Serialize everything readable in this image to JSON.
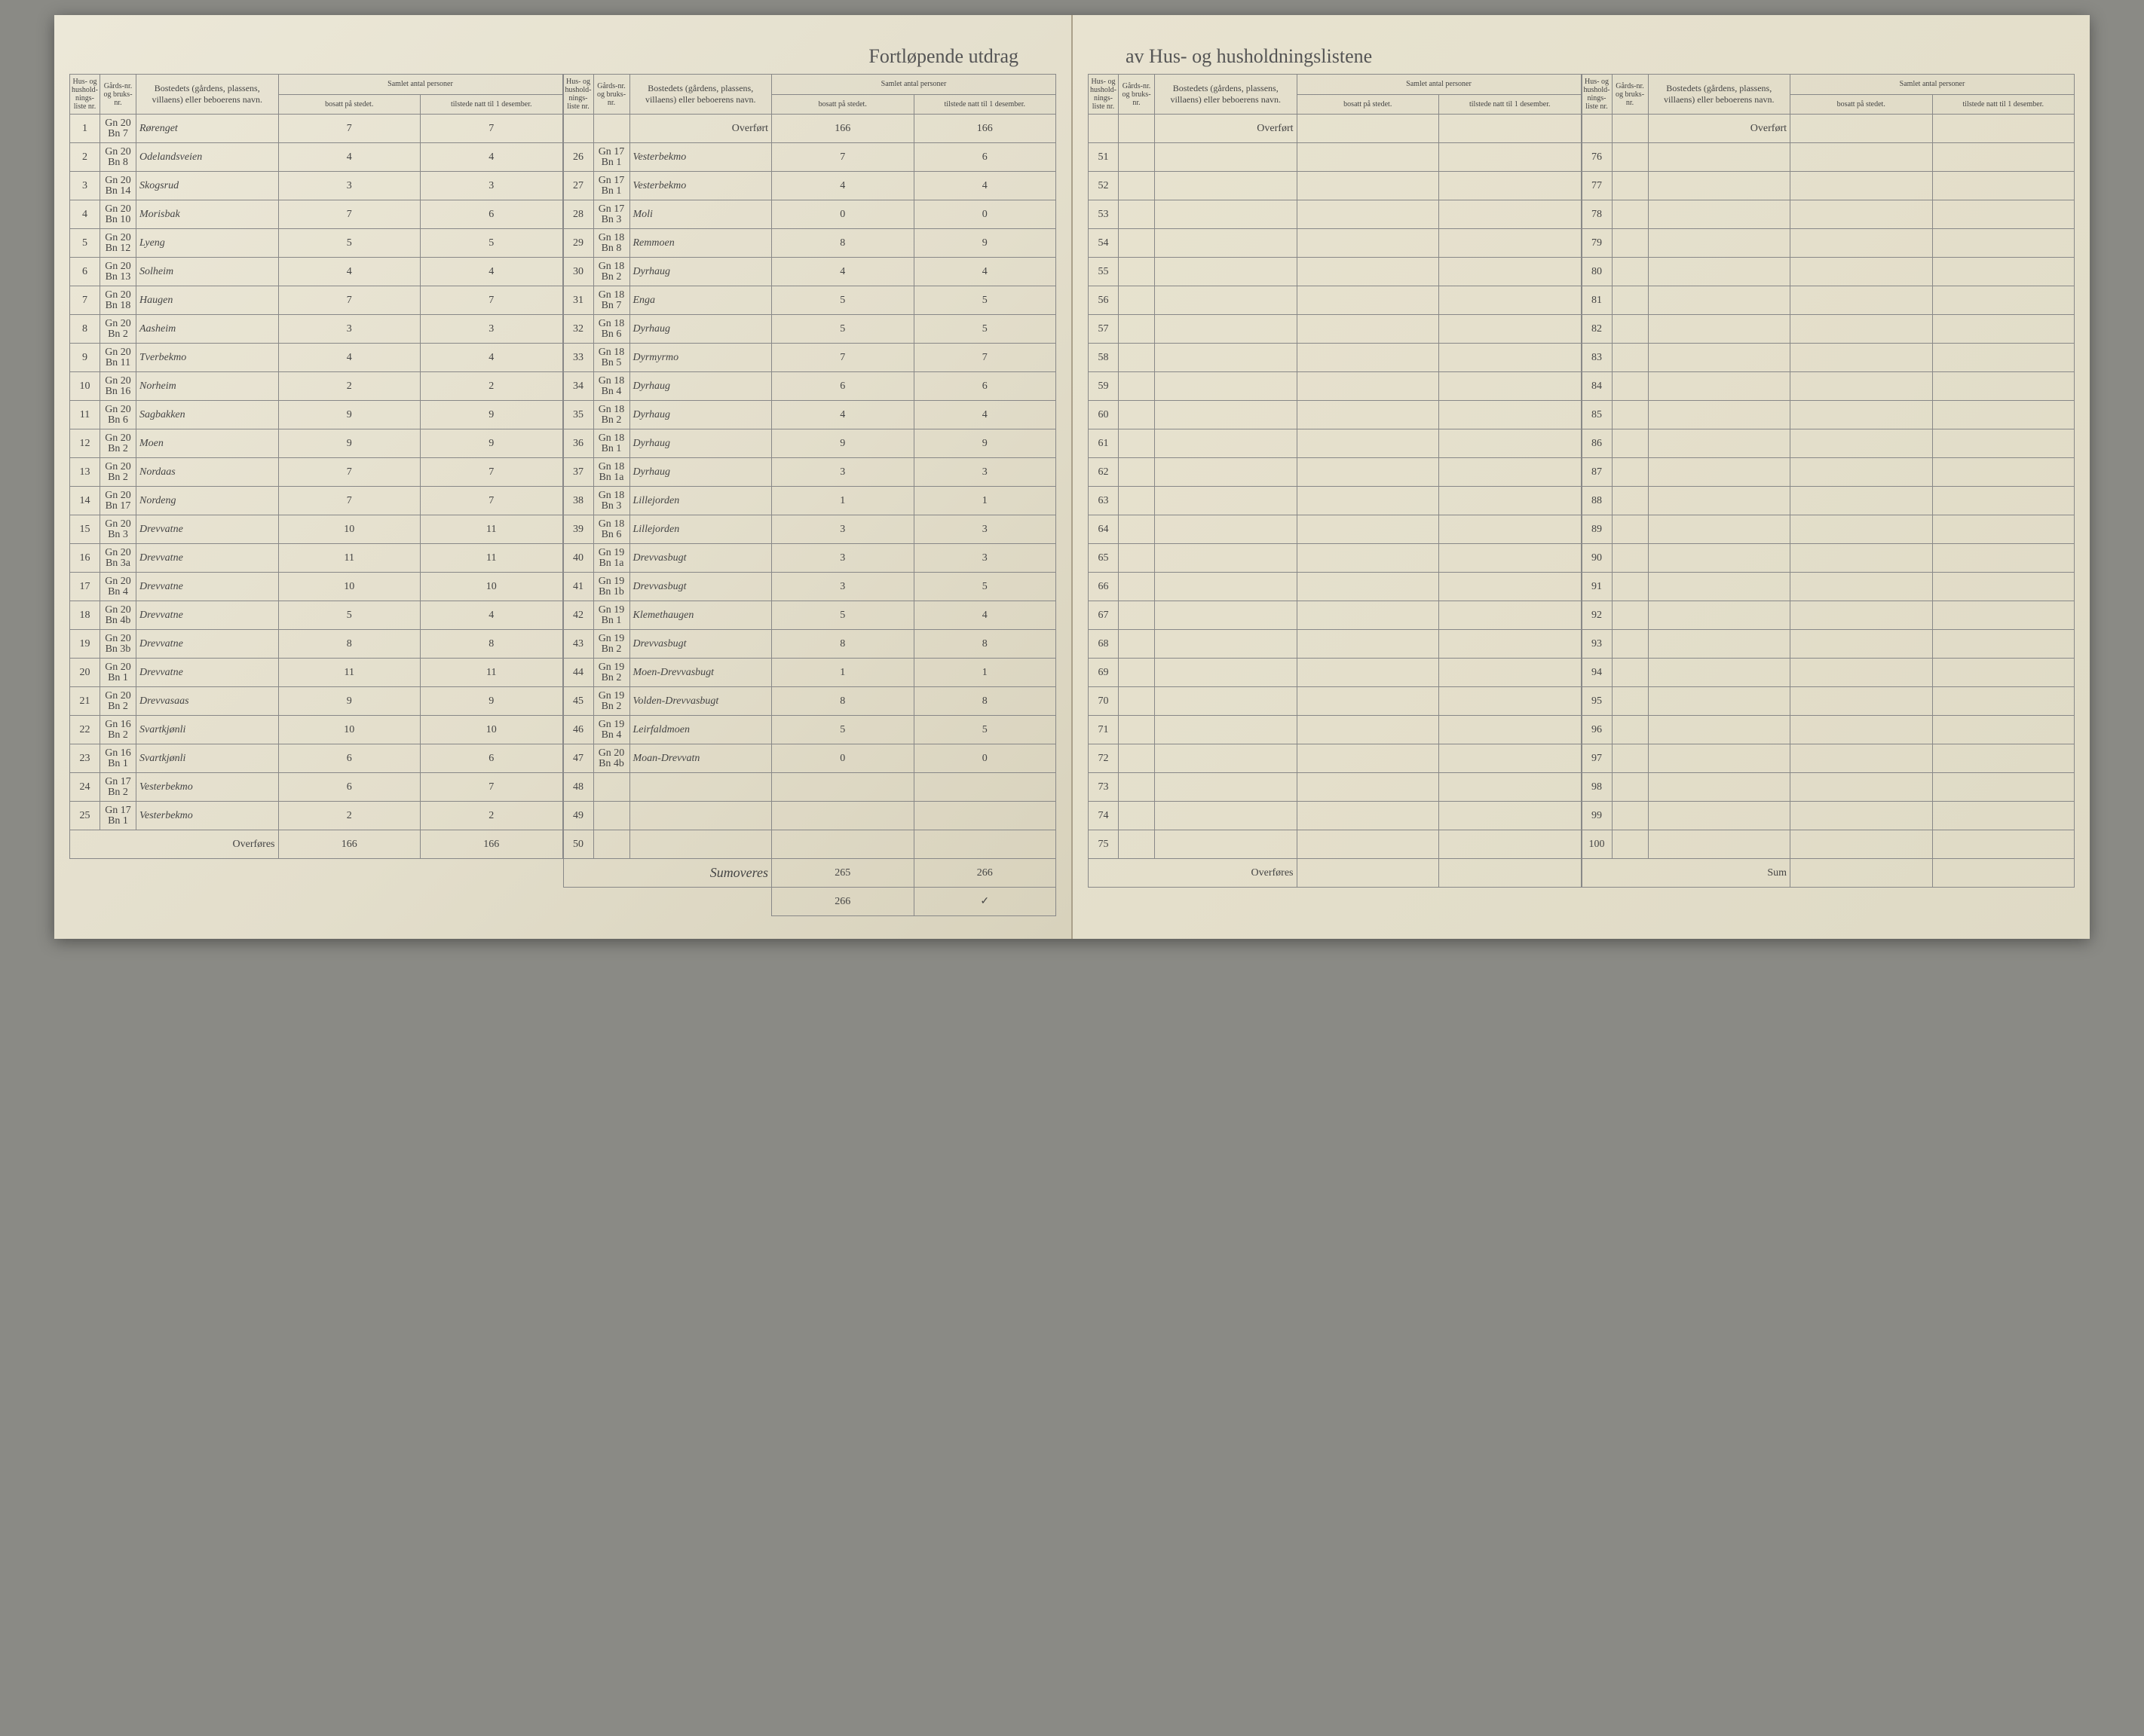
{
  "title_left": "Fortløpende utdrag",
  "title_right": "av Hus- og husholdningslistene",
  "headers": {
    "hus_nr": "Hus- og hushold-nings-liste nr.",
    "gards_nr": "Gårds-nr. og bruks-nr.",
    "bosted": "Bostedets (gårdens, plassens, villaens) eller beboerens navn.",
    "samlet": "Samlet antal personer",
    "bosatt": "bosatt på stedet.",
    "tilstede": "tilstede natt til 1 desember."
  },
  "labels": {
    "overfort": "Overført",
    "overfores": "Overføres",
    "sum": "Sum"
  },
  "left_page": {
    "col1": {
      "rows": [
        {
          "nr": "1",
          "gard": "Gn 20 Bn 7",
          "name": "Rørenget",
          "b": "7",
          "t": "7"
        },
        {
          "nr": "2",
          "gard": "Gn 20 Bn 8",
          "name": "Odelandsveien",
          "b": "4",
          "t": "4"
        },
        {
          "nr": "3",
          "gard": "Gn 20 Bn 14",
          "name": "Skogsrud",
          "b": "3",
          "t": "3"
        },
        {
          "nr": "4",
          "gard": "Gn 20 Bn 10",
          "name": "Morisbak",
          "b": "7",
          "t": "6"
        },
        {
          "nr": "5",
          "gard": "Gn 20 Bn 12",
          "name": "Lyeng",
          "b": "5",
          "t": "5"
        },
        {
          "nr": "6",
          "gard": "Gn 20 Bn 13",
          "name": "Solheim",
          "b": "4",
          "t": "4"
        },
        {
          "nr": "7",
          "gard": "Gn 20 Bn 18",
          "name": "Haugen",
          "b": "7",
          "t": "7"
        },
        {
          "nr": "8",
          "gard": "Gn 20 Bn 2",
          "name": "Aasheim",
          "b": "3",
          "t": "3"
        },
        {
          "nr": "9",
          "gard": "Gn 20 Bn 11",
          "name": "Tverbekmo",
          "b": "4",
          "t": "4"
        },
        {
          "nr": "10",
          "gard": "Gn 20 Bn 16",
          "name": "Norheim",
          "b": "2",
          "t": "2"
        },
        {
          "nr": "11",
          "gard": "Gn 20 Bn 6",
          "name": "Sagbakken",
          "b": "9",
          "t": "9"
        },
        {
          "nr": "12",
          "gard": "Gn 20 Bn 2",
          "name": "Moen",
          "b": "9",
          "t": "9"
        },
        {
          "nr": "13",
          "gard": "Gn 20 Bn 2",
          "name": "Nordaas",
          "b": "7",
          "t": "7"
        },
        {
          "nr": "14",
          "gard": "Gn 20 Bn 17",
          "name": "Nordeng",
          "b": "7",
          "t": "7"
        },
        {
          "nr": "15",
          "gard": "Gn 20 Bn 3",
          "name": "Drevvatne",
          "b": "10",
          "t": "11"
        },
        {
          "nr": "16",
          "gard": "Gn 20 Bn 3a",
          "name": "Drevvatne",
          "b": "11",
          "t": "11"
        },
        {
          "nr": "17",
          "gard": "Gn 20 Bn 4",
          "name": "Drevvatne",
          "b": "10",
          "t": "10"
        },
        {
          "nr": "18",
          "gard": "Gn 20 Bn 4b",
          "name": "Drevvatne",
          "b": "5",
          "t": "4"
        },
        {
          "nr": "19",
          "gard": "Gn 20 Bn 3b",
          "name": "Drevvatne",
          "b": "8",
          "t": "8"
        },
        {
          "nr": "20",
          "gard": "Gn 20 Bn 1",
          "name": "Drevvatne",
          "b": "11",
          "t": "11"
        },
        {
          "nr": "21",
          "gard": "Gn 20 Bn 2",
          "name": "Drevvasaas",
          "b": "9",
          "t": "9"
        },
        {
          "nr": "22",
          "gard": "Gn 16 Bn 2",
          "name": "Svartkjønli",
          "b": "10",
          "t": "10"
        },
        {
          "nr": "23",
          "gard": "Gn 16 Bn 1",
          "name": "Svartkjønli",
          "b": "6",
          "t": "6"
        },
        {
          "nr": "24",
          "gard": "Gn 17 Bn 2",
          "name": "Vesterbekmo",
          "b": "6",
          "t": "7"
        },
        {
          "nr": "25",
          "gard": "Gn 17 Bn 1",
          "name": "Vesterbekmo",
          "b": "2",
          "t": "2"
        }
      ],
      "overfores": {
        "b": "166",
        "t": "166"
      }
    },
    "col2": {
      "overfort": {
        "b": "166",
        "t": "166"
      },
      "rows": [
        {
          "nr": "26",
          "gard": "Gn 17 Bn 1",
          "name": "Vesterbekmo",
          "b": "7",
          "t": "6"
        },
        {
          "nr": "27",
          "gard": "Gn 17 Bn 1",
          "name": "Vesterbekmo",
          "b": "4",
          "t": "4"
        },
        {
          "nr": "28",
          "gard": "Gn 17 Bn 3",
          "name": "Moli",
          "b": "0",
          "t": "0"
        },
        {
          "nr": "29",
          "gard": "Gn 18 Bn 8",
          "name": "Remmoen",
          "b": "8",
          "t": "9"
        },
        {
          "nr": "30",
          "gard": "Gn 18 Bn 2",
          "name": "Dyrhaug",
          "b": "4",
          "t": "4"
        },
        {
          "nr": "31",
          "gard": "Gn 18 Bn 7",
          "name": "Enga",
          "b": "5",
          "t": "5"
        },
        {
          "nr": "32",
          "gard": "Gn 18 Bn 6",
          "name": "Dyrhaug",
          "b": "5",
          "t": "5"
        },
        {
          "nr": "33",
          "gard": "Gn 18 Bn 5",
          "name": "Dyrmyrmo",
          "b": "7",
          "t": "7"
        },
        {
          "nr": "34",
          "gard": "Gn 18 Bn 4",
          "name": "Dyrhaug",
          "b": "6",
          "t": "6"
        },
        {
          "nr": "35",
          "gard": "Gn 18 Bn 2",
          "name": "Dyrhaug",
          "b": "4",
          "t": "4"
        },
        {
          "nr": "36",
          "gard": "Gn 18 Bn 1",
          "name": "Dyrhaug",
          "b": "9",
          "t": "9"
        },
        {
          "nr": "37",
          "gard": "Gn 18 Bn 1a",
          "name": "Dyrhaug",
          "b": "3",
          "t": "3"
        },
        {
          "nr": "38",
          "gard": "Gn 18 Bn 3",
          "name": "Lillejorden",
          "b": "1",
          "t": "1"
        },
        {
          "nr": "39",
          "gard": "Gn 18 Bn 6",
          "name": "Lillejorden",
          "b": "3",
          "t": "3"
        },
        {
          "nr": "40",
          "gard": "Gn 19 Bn 1a",
          "name": "Drevvasbugt",
          "b": "3",
          "t": "3"
        },
        {
          "nr": "41",
          "gard": "Gn 19 Bn 1b",
          "name": "Drevvasbugt",
          "b": "3",
          "t": "5"
        },
        {
          "nr": "42",
          "gard": "Gn 19 Bn 1",
          "name": "Klemethaugen",
          "b": "5",
          "t": "4"
        },
        {
          "nr": "43",
          "gard": "Gn 19 Bn 2",
          "name": "Drevvasbugt",
          "b": "8",
          "t": "8"
        },
        {
          "nr": "44",
          "gard": "Gn 19 Bn 2",
          "name": "Moen-Drevvasbugt",
          "b": "1",
          "t": "1"
        },
        {
          "nr": "45",
          "gard": "Gn 19 Bn 2",
          "name": "Volden-Drevvasbugt",
          "b": "8",
          "t": "8"
        },
        {
          "nr": "46",
          "gard": "Gn 19 Bn 4",
          "name": "Leirfaldmoen",
          "b": "5",
          "t": "5"
        },
        {
          "nr": "47",
          "gard": "Gn 20 Bn 4b",
          "name": "Moan-Drevvatn",
          "b": "0",
          "t": "0"
        },
        {
          "nr": "48",
          "gard": "",
          "name": "",
          "b": "",
          "t": ""
        },
        {
          "nr": "49",
          "gard": "",
          "name": "",
          "b": "",
          "t": ""
        },
        {
          "nr": "50",
          "gard": "",
          "name": "",
          "b": "",
          "t": ""
        }
      ],
      "sum": {
        "label": "Sumoveres",
        "b": "265",
        "t": "266",
        "b2": "266"
      }
    }
  },
  "right_page": {
    "col1": {
      "start": 51,
      "end": 75
    },
    "col2": {
      "start": 76,
      "end": 100
    }
  },
  "colors": {
    "paper": "#e8e4d4",
    "ink_print": "#555555",
    "ink_hand": "#3a3a4a",
    "rule": "#888888"
  }
}
